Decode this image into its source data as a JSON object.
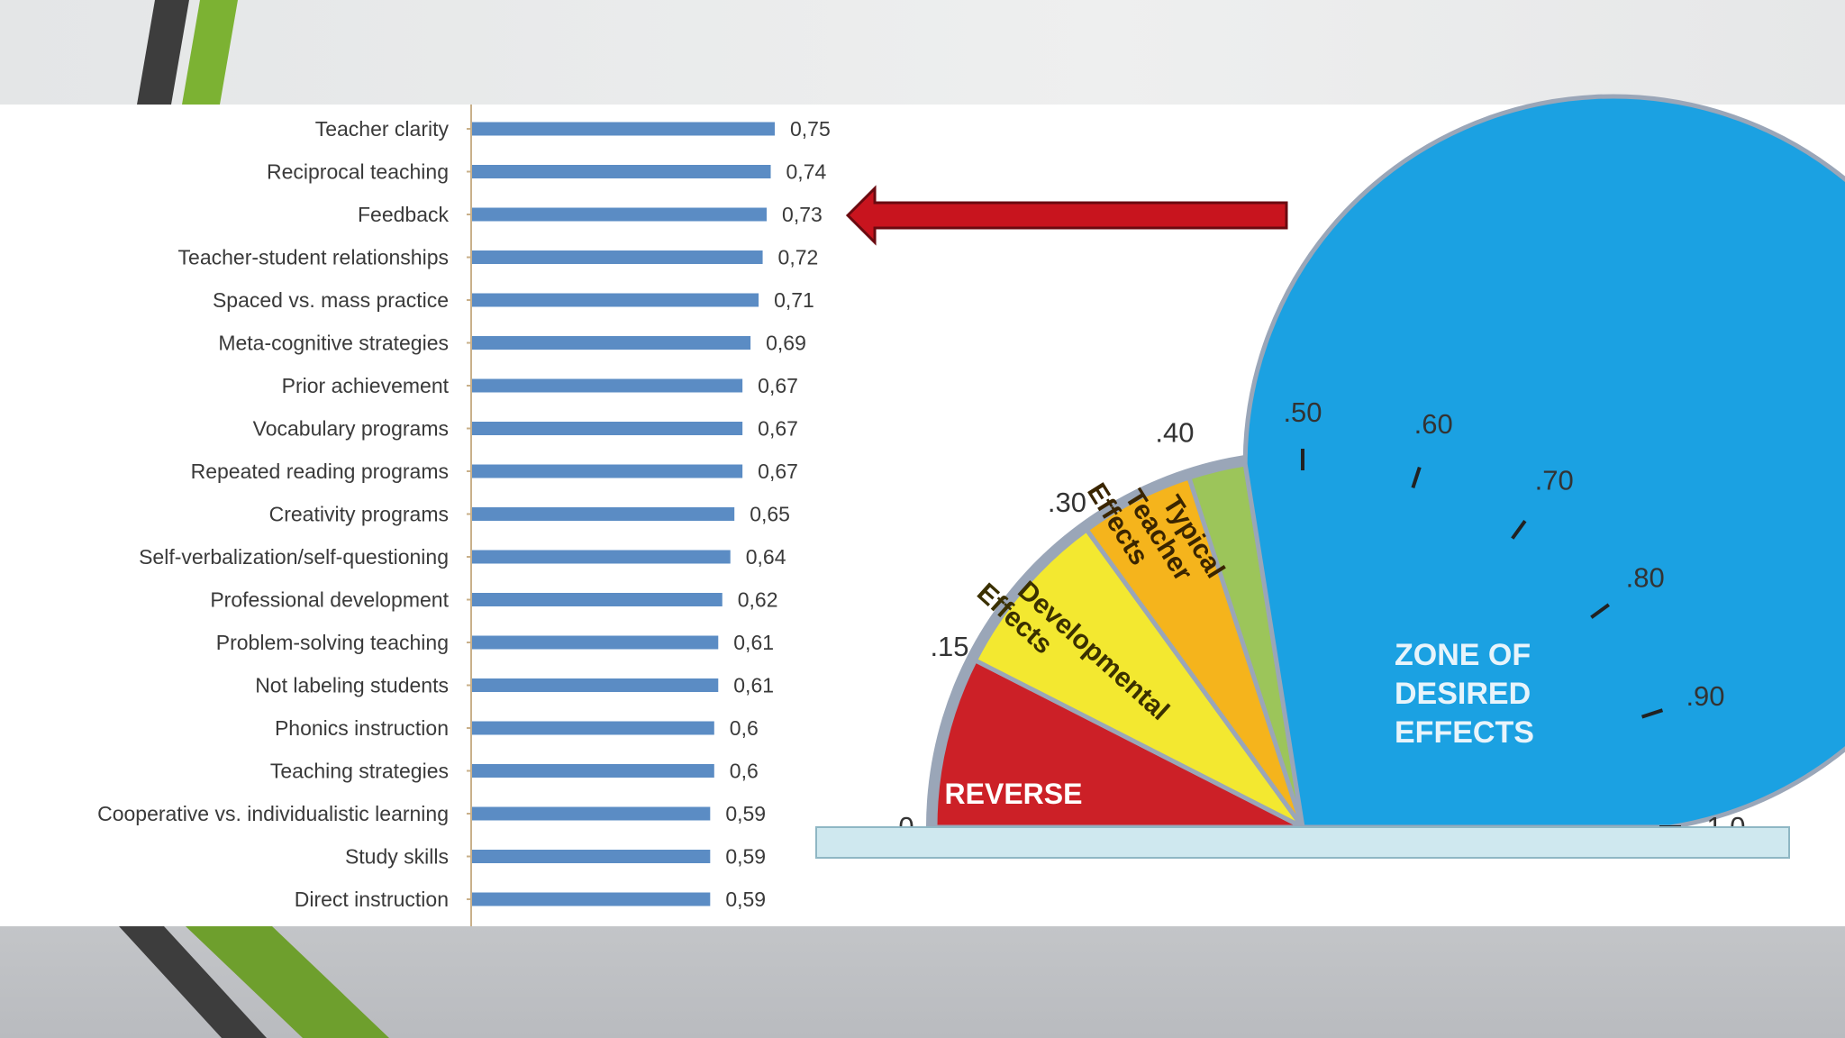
{
  "chart_data": [
    {
      "type": "bar",
      "orientation": "horizontal",
      "categories": [
        "Teacher clarity",
        "Reciprocal teaching",
        "Feedback",
        "Teacher-student relationships",
        "Spaced vs. mass practice",
        "Meta-cognitive strategies",
        "Prior achievement",
        "Vocabulary programs",
        "Repeated reading programs",
        "Creativity programs",
        "Self-verbalization/self-questioning",
        "Professional development",
        "Problem-solving teaching",
        "Not labeling students",
        "Phonics instruction",
        "Teaching strategies",
        "Cooperative vs. individualistic learning",
        "Study skills",
        "Direct instruction"
      ],
      "values": [
        0.75,
        0.74,
        0.73,
        0.72,
        0.71,
        0.69,
        0.67,
        0.67,
        0.67,
        0.65,
        0.64,
        0.62,
        0.61,
        0.61,
        0.6,
        0.6,
        0.59,
        0.59,
        0.59
      ],
      "value_labels": [
        "0,75",
        "0,74",
        "0,73",
        "0,72",
        "0,71",
        "0,69",
        "0,67",
        "0,67",
        "0,67",
        "0,65",
        "0,64",
        "0,62",
        "0,61",
        "0,61",
        "0,6",
        "0,6",
        "0,59",
        "0,59",
        "0,59"
      ],
      "xlim": [
        0,
        0.75
      ],
      "bar_color": "#5b8cc4",
      "highlighted_category": "Feedback",
      "arrow_color": "#c8141e"
    },
    {
      "type": "gauge",
      "range": [
        0,
        1.0
      ],
      "ticks": [
        {
          "value": 0,
          "label": "0"
        },
        {
          "value": 0.15,
          "label": ".15"
        },
        {
          "value": 0.3,
          "label": ".30"
        },
        {
          "value": 0.4,
          "label": ".40"
        },
        {
          "value": 0.5,
          "label": ".50"
        },
        {
          "value": 0.6,
          "label": ".60"
        },
        {
          "value": 0.7,
          "label": ".70"
        },
        {
          "value": 0.8,
          "label": ".80"
        },
        {
          "value": 0.9,
          "label": ".90"
        },
        {
          "value": 1.0,
          "label": "1.0"
        }
      ],
      "zones": [
        {
          "from": 0,
          "to": 0.15,
          "label": "REVERSE",
          "color": "#cc2027"
        },
        {
          "from": 0.15,
          "to": 0.3,
          "label": "Developmental Effects",
          "color": "#f3e830"
        },
        {
          "from": 0.3,
          "to": 0.4,
          "label": "Typical Teacher Effects",
          "color": "#f5b41c"
        },
        {
          "from": 0.4,
          "to": 0.45,
          "label": "",
          "color": "#9cc55a"
        },
        {
          "from": 0.45,
          "to": 1.0,
          "label": "ZONE OF DESIRED EFFECTS",
          "color": "#1ba1e2"
        }
      ]
    }
  ],
  "zone_labels": {
    "reverse": "REVERSE",
    "developmental_1": "Developmental",
    "developmental_2": "Effects",
    "typical_1": "Typical",
    "typical_2": "Teacher",
    "typical_3": "Effects",
    "desired_1": "ZONE OF",
    "desired_2": "DESIRED",
    "desired_3": "EFFECTS"
  },
  "decor_colors": {
    "accent_green": "#7cb233",
    "accent_dark": "#3d3d3d",
    "panel": "#ffffff",
    "base_plate": "#cfe8ef"
  }
}
